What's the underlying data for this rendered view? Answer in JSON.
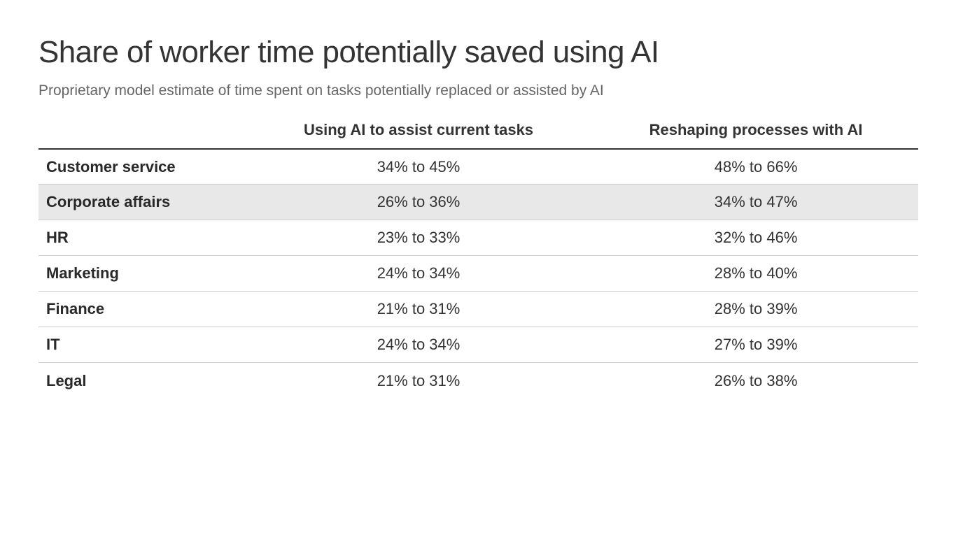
{
  "page": {
    "title": "Share of worker time potentially saved using AI",
    "subtitle": "Proprietary model estimate of time spent on tasks potentially replaced or assisted by AI"
  },
  "table": {
    "columns": {
      "label": "",
      "assist": "Using AI to assist current tasks",
      "reshape": "Reshaping processes with AI"
    },
    "rows": [
      {
        "label": "Customer service",
        "assist": "34% to 45%",
        "reshape": "48% to 66%",
        "highlighted": false
      },
      {
        "label": "Corporate affairs",
        "assist": "26% to 36%",
        "reshape": "34% to 47%",
        "highlighted": true
      },
      {
        "label": "HR",
        "assist": "23% to 33%",
        "reshape": "32% to 46%",
        "highlighted": false
      },
      {
        "label": "Marketing",
        "assist": "24% to 34%",
        "reshape": "28% to 40%",
        "highlighted": false
      },
      {
        "label": "Finance",
        "assist": "21% to 31%",
        "reshape": "28% to 39%",
        "highlighted": false
      },
      {
        "label": "IT",
        "assist": "24% to 34%",
        "reshape": "27% to 39%",
        "highlighted": false
      },
      {
        "label": "Legal",
        "assist": "21% to 31%",
        "reshape": "26% to 38%",
        "highlighted": false
      }
    ]
  },
  "colors": {
    "title_text": "#343434",
    "subtitle_text": "#666666",
    "table_text": "#333333",
    "row_divider": "#cccccc",
    "header_rule": "#333333",
    "highlight_row_bg": "#e8e8e8",
    "background": "#ffffff"
  },
  "chart_data": {
    "type": "table",
    "title": "Share of worker time potentially saved using AI",
    "subtitle": "Proprietary model estimate of time spent on tasks potentially replaced or assisted by AI",
    "categories": [
      "Customer service",
      "Corporate affairs",
      "HR",
      "Marketing",
      "Finance",
      "IT",
      "Legal"
    ],
    "series": [
      {
        "name": "Using AI to assist current tasks",
        "values": [
          "34% to 45%",
          "26% to 36%",
          "23% to 33%",
          "24% to 34%",
          "21% to 31%",
          "24% to 34%",
          "21% to 31%"
        ],
        "ranges_pct": [
          [
            34,
            45
          ],
          [
            26,
            36
          ],
          [
            23,
            33
          ],
          [
            24,
            34
          ],
          [
            21,
            31
          ],
          [
            24,
            34
          ],
          [
            21,
            31
          ]
        ]
      },
      {
        "name": "Reshaping processes with AI",
        "values": [
          "48% to 66%",
          "34% to 47%",
          "32% to 46%",
          "28% to 40%",
          "28% to 39%",
          "27% to 39%",
          "26% to 38%"
        ],
        "ranges_pct": [
          [
            48,
            66
          ],
          [
            34,
            47
          ],
          [
            32,
            46
          ],
          [
            28,
            40
          ],
          [
            28,
            39
          ],
          [
            27,
            39
          ],
          [
            26,
            38
          ]
        ]
      }
    ]
  }
}
